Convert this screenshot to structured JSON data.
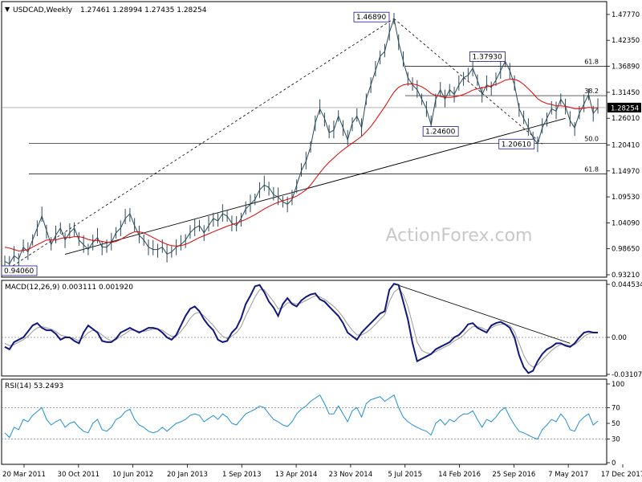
{
  "chart_data": {
    "type": "line",
    "symbol": "USDCAD,Weekly",
    "ohlc": "1.27461 1.28994 1.27435 1.28254",
    "watermark": "ActionForex.com",
    "x_labels": [
      "20 Mar 2011",
      "30 Oct 2011",
      "10 Jun 2012",
      "20 Jan 2013",
      "1 Sep 2013",
      "13 Apr 2014",
      "23 Nov 2014",
      "5 Jul 2015",
      "14 Feb 2016",
      "25 Sep 2016",
      "7 May 2017",
      "17 Dec 2017"
    ],
    "price": {
      "ylim": [
        0.9321,
        1.4777
      ],
      "ticks": [
        "1.47770",
        "1.42350",
        "1.36890",
        "1.31450",
        "1.26010",
        "1.20410",
        "1.14970",
        "1.09530",
        "1.04090",
        "0.98650",
        "0.93210"
      ],
      "last": "1.28254",
      "hlines": [
        {
          "level": 1.3693,
          "label": "61.8"
        },
        {
          "level": 1.3075,
          "label": "38.2"
        },
        {
          "level": 1.2073,
          "label": "50.0"
        },
        {
          "level": 1.1434,
          "label": "61.8"
        }
      ],
      "annotations": [
        "1.46890",
        "1.37930",
        "1.24600",
        "1.20610",
        "0.94060"
      ],
      "annotation_values": [
        1.4689,
        1.3793,
        1.246,
        1.2061,
        0.9406
      ],
      "series": [
        {
          "name": "USDCAD close",
          "values": [
            0.96,
            0.955,
            0.972,
            0.965,
            0.99,
            0.98,
            1.005,
            1.03,
            1.055,
            1.025,
            0.995,
            1.015,
            1.03,
            1.005,
            1.02,
            1.03,
            1.005,
            0.995,
            0.985,
            1.0,
            1.01,
            0.99,
            0.99,
            1.0,
            1.02,
            1.03,
            1.05,
            1.06,
            1.035,
            1.015,
            1.005,
            0.99,
            0.985,
            0.985,
            0.99,
            0.975,
            0.98,
            0.99,
            0.995,
            1.005,
            1.02,
            1.03,
            1.035,
            1.02,
            1.035,
            1.05,
            1.045,
            1.06,
            1.055,
            1.04,
            1.035,
            1.05,
            1.07,
            1.08,
            1.09,
            1.11,
            1.12,
            1.115,
            1.1,
            1.095,
            1.085,
            1.08,
            1.09,
            1.12,
            1.15,
            1.17,
            1.2,
            1.25,
            1.28,
            1.26,
            1.23,
            1.235,
            1.265,
            1.24,
            1.215,
            1.25,
            1.265,
            1.24,
            1.3,
            1.33,
            1.36,
            1.39,
            1.4,
            1.44,
            1.4689,
            1.42,
            1.38,
            1.345,
            1.33,
            1.32,
            1.3,
            1.28,
            1.246,
            1.3,
            1.32,
            1.3,
            1.32,
            1.31,
            1.33,
            1.345,
            1.35,
            1.365,
            1.34,
            1.31,
            1.33,
            1.325,
            1.34,
            1.36,
            1.3793,
            1.36,
            1.33,
            1.28,
            1.26,
            1.24,
            1.22,
            1.2061,
            1.24,
            1.26,
            1.28,
            1.275,
            1.3,
            1.285,
            1.255,
            1.24,
            1.27,
            1.29,
            1.31,
            1.27,
            1.282
          ]
        },
        {
          "name": "MA",
          "values": [
            0.99,
            0.988,
            0.985,
            0.982,
            0.983,
            0.985,
            0.99,
            0.995,
            1.0,
            1.005,
            1.005,
            1.005,
            1.008,
            1.01,
            1.01,
            1.012,
            1.012,
            1.01,
            1.006,
            1.004,
            1.004,
            1.002,
            1.0,
            1.0,
            1.002,
            1.006,
            1.012,
            1.018,
            1.022,
            1.022,
            1.02,
            1.015,
            1.01,
            1.005,
            1.0,
            0.996,
            0.993,
            0.992,
            0.993,
            0.996,
            1.0,
            1.005,
            1.01,
            1.014,
            1.018,
            1.022,
            1.026,
            1.03,
            1.034,
            1.037,
            1.04,
            1.044,
            1.048,
            1.053,
            1.058,
            1.064,
            1.07,
            1.075,
            1.08,
            1.084,
            1.087,
            1.09,
            1.093,
            1.097,
            1.103,
            1.11,
            1.12,
            1.133,
            1.146,
            1.158,
            1.168,
            1.177,
            1.186,
            1.194,
            1.201,
            1.208,
            1.215,
            1.222,
            1.232,
            1.243,
            1.256,
            1.27,
            1.284,
            1.3,
            1.315,
            1.325,
            1.33,
            1.332,
            1.332,
            1.33,
            1.326,
            1.32,
            1.312,
            1.308,
            1.306,
            1.304,
            1.304,
            1.305,
            1.307,
            1.31,
            1.314,
            1.319,
            1.322,
            1.324,
            1.326,
            1.328,
            1.331,
            1.335,
            1.34,
            1.342,
            1.342,
            1.338,
            1.331,
            1.322,
            1.312,
            1.301,
            1.295,
            1.291,
            1.289,
            1.286,
            1.286,
            1.285,
            1.283,
            1.28,
            1.28,
            1.281,
            1.283,
            1.282,
            1.282
          ]
        }
      ]
    },
    "macd": {
      "label": "MACD(12,26,9) 0.003111 0.001920",
      "ylim": [
        -0.03107,
        0.04453
      ],
      "ticks": [
        "0.044534",
        "0.00",
        "-0.031072"
      ],
      "series": [
        {
          "name": "MACD",
          "values": [
            -0.008,
            -0.01,
            -0.004,
            -0.002,
            0.0,
            0.005,
            0.01,
            0.012,
            0.008,
            0.006,
            0.006,
            0.003,
            -0.002,
            0.0,
            0.0,
            -0.003,
            -0.005,
            0.004,
            0.01,
            0.007,
            0.004,
            -0.003,
            -0.004,
            -0.004,
            -0.001,
            0.004,
            0.006,
            0.008,
            0.006,
            0.004,
            0.006,
            0.008,
            0.008,
            0.007,
            0.004,
            0.0,
            -0.002,
            0.002,
            0.01,
            0.018,
            0.024,
            0.026,
            0.022,
            0.015,
            0.01,
            0.006,
            -0.002,
            -0.004,
            -0.003,
            0.004,
            0.008,
            0.016,
            0.028,
            0.035,
            0.043,
            0.044,
            0.038,
            0.03,
            0.025,
            0.018,
            0.028,
            0.033,
            0.028,
            0.026,
            0.031,
            0.034,
            0.036,
            0.037,
            0.032,
            0.03,
            0.026,
            0.022,
            0.018,
            0.012,
            0.004,
            0.001,
            -0.002,
            0.004,
            0.008,
            0.012,
            0.016,
            0.02,
            0.022,
            0.04,
            0.045,
            0.044,
            0.03,
            0.015,
            -0.005,
            -0.02,
            -0.018,
            -0.016,
            -0.014,
            -0.01,
            -0.008,
            -0.006,
            -0.004,
            0.0,
            0.002,
            0.006,
            0.011,
            0.012,
            0.008,
            0.006,
            0.004,
            0.01,
            0.012,
            0.013,
            0.011,
            0.008,
            0.0,
            -0.015,
            -0.025,
            -0.03,
            -0.028,
            -0.02,
            -0.014,
            -0.01,
            -0.008,
            -0.005,
            -0.005,
            -0.007,
            -0.008,
            -0.005,
            0.0,
            0.004,
            0.005,
            0.004,
            0.004
          ]
        },
        {
          "name": "Signal",
          "values": [
            -0.005,
            -0.007,
            -0.006,
            -0.004,
            -0.002,
            0.001,
            0.005,
            0.008,
            0.009,
            0.008,
            0.007,
            0.005,
            0.002,
            0.001,
            0.0,
            -0.001,
            -0.003,
            0.0,
            0.004,
            0.006,
            0.005,
            0.002,
            -0.001,
            -0.003,
            -0.002,
            0.001,
            0.003,
            0.006,
            0.006,
            0.005,
            0.005,
            0.006,
            0.007,
            0.007,
            0.006,
            0.003,
            0.001,
            0.001,
            0.005,
            0.01,
            0.016,
            0.02,
            0.021,
            0.018,
            0.014,
            0.01,
            0.005,
            0.001,
            -0.001,
            0.001,
            0.004,
            0.009,
            0.018,
            0.026,
            0.034,
            0.04,
            0.04,
            0.035,
            0.03,
            0.024,
            0.025,
            0.029,
            0.029,
            0.028,
            0.029,
            0.031,
            0.033,
            0.035,
            0.034,
            0.032,
            0.029,
            0.026,
            0.022,
            0.017,
            0.011,
            0.006,
            0.002,
            0.002,
            0.004,
            0.007,
            0.011,
            0.015,
            0.019,
            0.03,
            0.038,
            0.041,
            0.036,
            0.026,
            0.011,
            -0.004,
            -0.011,
            -0.013,
            -0.014,
            -0.012,
            -0.01,
            -0.008,
            -0.006,
            -0.003,
            -0.001,
            0.002,
            0.006,
            0.009,
            0.009,
            0.008,
            0.006,
            0.008,
            0.01,
            0.011,
            0.011,
            0.01,
            0.005,
            -0.005,
            -0.015,
            -0.022,
            -0.025,
            -0.023,
            -0.019,
            -0.015,
            -0.011,
            -0.008,
            -0.006,
            -0.006,
            -0.007,
            -0.006,
            -0.003,
            0.001,
            0.003,
            0.004,
            0.004
          ]
        }
      ]
    },
    "rsi": {
      "label": "RSI(14) 53.2493",
      "ylim": [
        0,
        100
      ],
      "ticks": [
        "100",
        "70",
        "50",
        "30",
        "0"
      ],
      "hlines": [
        70,
        30
      ],
      "series": [
        {
          "name": "RSI",
          "values": [
            38,
            32,
            45,
            42,
            55,
            52,
            60,
            65,
            70,
            55,
            48,
            52,
            55,
            45,
            50,
            52,
            45,
            40,
            38,
            50,
            55,
            42,
            40,
            45,
            55,
            58,
            65,
            68,
            55,
            48,
            45,
            40,
            38,
            40,
            45,
            40,
            45,
            50,
            52,
            55,
            60,
            62,
            60,
            52,
            56,
            60,
            55,
            62,
            58,
            50,
            48,
            55,
            62,
            65,
            68,
            72,
            70,
            62,
            55,
            52,
            48,
            46,
            52,
            62,
            68,
            72,
            78,
            82,
            86,
            75,
            62,
            62,
            72,
            62,
            52,
            66,
            70,
            58,
            75,
            80,
            82,
            84,
            78,
            82,
            86,
            70,
            58,
            52,
            48,
            45,
            42,
            40,
            35,
            50,
            55,
            48,
            55,
            52,
            58,
            62,
            62,
            66,
            55,
            45,
            55,
            52,
            58,
            66,
            70,
            58,
            48,
            40,
            38,
            35,
            32,
            30,
            42,
            48,
            55,
            52,
            62,
            55,
            42,
            40,
            52,
            58,
            62,
            48,
            53
          ]
        }
      ]
    }
  }
}
